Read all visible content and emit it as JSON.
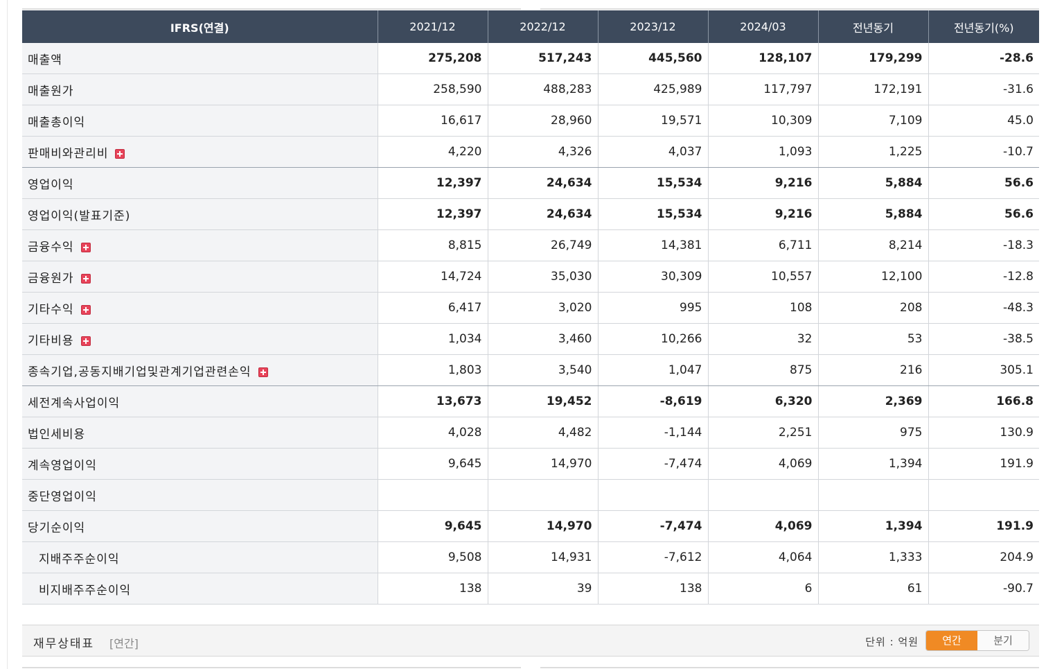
{
  "table": {
    "headers": [
      "IFRS(연결)",
      "2021/12",
      "2022/12",
      "2023/12",
      "2024/03",
      "전년동기",
      "전년동기(%)"
    ],
    "rows": [
      {
        "label": "매출액",
        "values": [
          "275,208",
          "517,243",
          "445,560",
          "128,107",
          "179,299",
          "-28.6"
        ]
      },
      {
        "label": "매출원가",
        "values": [
          "258,590",
          "488,283",
          "425,989",
          "117,797",
          "172,191",
          "-31.6"
        ]
      },
      {
        "label": "매출총이익",
        "values": [
          "16,617",
          "28,960",
          "19,571",
          "10,309",
          "7,109",
          "45.0"
        ]
      },
      {
        "label": "판매비와관리비",
        "values": [
          "4,220",
          "4,326",
          "4,037",
          "1,093",
          "1,225",
          "-10.7"
        ]
      },
      {
        "label": "영업이익",
        "values": [
          "12,397",
          "24,634",
          "15,534",
          "9,216",
          "5,884",
          "56.6"
        ]
      },
      {
        "label": "영업이익(발표기준)",
        "values": [
          "12,397",
          "24,634",
          "15,534",
          "9,216",
          "5,884",
          "56.6"
        ]
      },
      {
        "label": "금융수익",
        "values": [
          "8,815",
          "26,749",
          "14,381",
          "6,711",
          "8,214",
          "-18.3"
        ]
      },
      {
        "label": "금융원가",
        "values": [
          "14,724",
          "35,030",
          "30,309",
          "10,557",
          "12,100",
          "-12.8"
        ]
      },
      {
        "label": "기타수익",
        "values": [
          "6,417",
          "3,020",
          "995",
          "108",
          "208",
          "-48.3"
        ]
      },
      {
        "label": "기타비용",
        "values": [
          "1,034",
          "3,460",
          "10,266",
          "32",
          "53",
          "-38.5"
        ]
      },
      {
        "label": "종속기업,공동지배기업및관계기업관련손익",
        "values": [
          "1,803",
          "3,540",
          "1,047",
          "875",
          "216",
          "305.1"
        ]
      },
      {
        "label": "세전계속사업이익",
        "values": [
          "13,673",
          "19,452",
          "-8,619",
          "6,320",
          "2,369",
          "166.8"
        ]
      },
      {
        "label": "법인세비용",
        "values": [
          "4,028",
          "4,482",
          "-1,144",
          "2,251",
          "975",
          "130.9"
        ]
      },
      {
        "label": "계속영업이익",
        "values": [
          "9,645",
          "14,970",
          "-7,474",
          "4,069",
          "1,394",
          "191.9"
        ]
      },
      {
        "label": "중단영업이익",
        "values": [
          "",
          "",
          "",
          "",
          "",
          ""
        ]
      },
      {
        "label": "당기순이익",
        "values": [
          "9,645",
          "14,970",
          "-7,474",
          "4,069",
          "1,394",
          "191.9"
        ]
      },
      {
        "label": "지배주주순이익",
        "values": [
          "9,508",
          "14,931",
          "-7,612",
          "4,064",
          "1,333",
          "204.9"
        ]
      },
      {
        "label": "비지배주주순이익",
        "values": [
          "138",
          "39",
          "138",
          "6",
          "61",
          "-90.7"
        ]
      }
    ]
  },
  "footer": {
    "title": "재무상태표",
    "subtitle": "[연간]",
    "unit": "단위 : 억원",
    "toggle_annual": "연간",
    "toggle_quarter": "분기"
  },
  "colors": {
    "header_bg": "#3d4a5c",
    "negative": "#e00000",
    "accent": "#f08a24",
    "expand_icon": "#e8445a"
  }
}
